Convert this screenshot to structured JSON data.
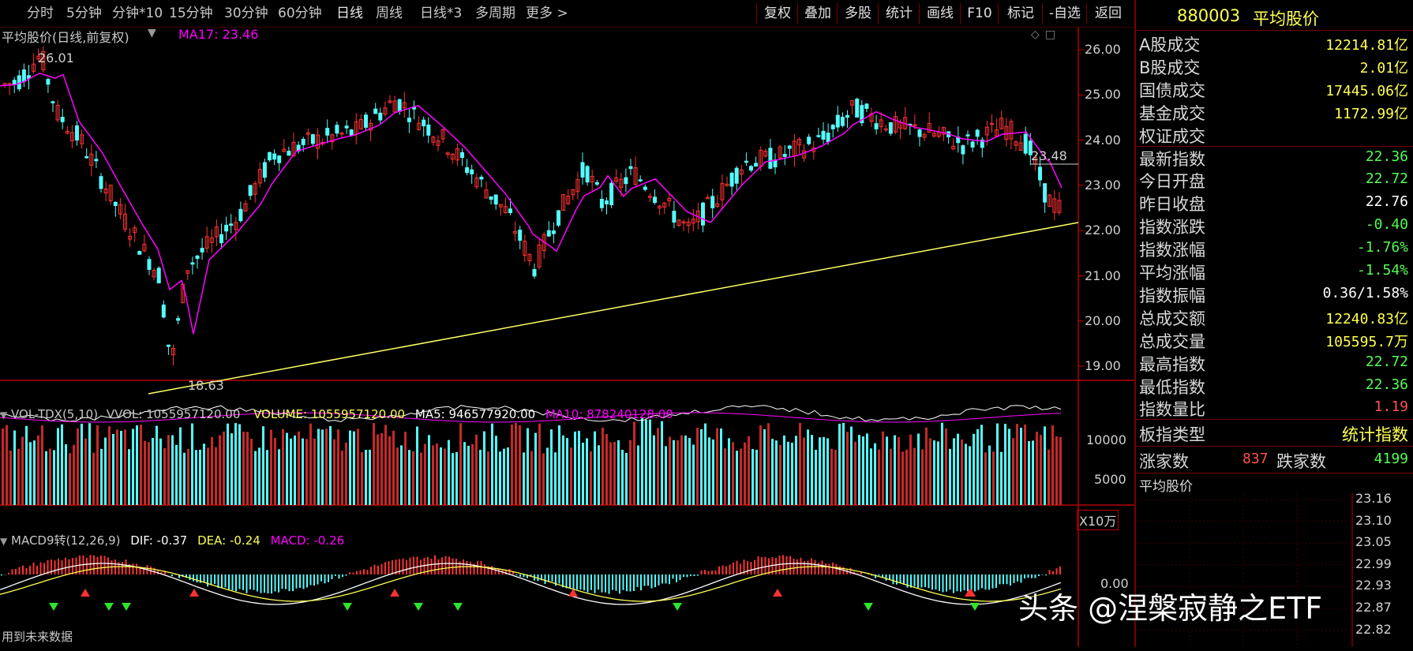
{
  "toolbar": {
    "periods": [
      "分时",
      "5分钟",
      "分钟*10",
      "15分钟",
      "30分钟",
      "60分钟",
      "日线",
      "周线",
      "日线*3",
      "多周期",
      "更多 >"
    ],
    "active_period": "日线",
    "actions": [
      "复权",
      "叠加",
      "多股",
      "统计",
      "画线",
      "F10",
      "标记",
      "-自选",
      "返回"
    ]
  },
  "main_chart": {
    "title": "平均股价(日线,前复权)",
    "ma_label": "MA17: 23.46",
    "price_axis": [
      "26.00",
      "25.00",
      "24.00",
      "23.00",
      "22.00",
      "21.00",
      "20.00",
      "19.00"
    ],
    "high_marker": "26.01",
    "low_marker": "18.63",
    "last_marker": "23.48",
    "colors": {
      "up": "#ff3232",
      "down": "#54fcfc",
      "ma17": "#ff00ff",
      "trend": "#ffff66",
      "axis": "#b40000"
    }
  },
  "volume_panel": {
    "name": "VOL-TDX(5,10)",
    "vvol": "VVOL: 1055957120.00",
    "volume": "VOLUME: 1055957120.00",
    "ma5": "MA5: 946577920.00",
    "ma10": "MA10: 878240128.00",
    "axis": [
      "10000",
      "5000"
    ],
    "unit": "X10万"
  },
  "macd_panel": {
    "name": "MACD9转(12,26,9)",
    "dif": "DIF: -0.37",
    "dea": "DEA: -0.24",
    "macd": "MACD: -0.26",
    "axis_zero": "0.00",
    "footer": "用到未来数据"
  },
  "sidebar": {
    "code": "880003",
    "name": "平均股价",
    "rows": [
      {
        "k": "A股成交",
        "v": "12214.81亿",
        "c": "#ffff54"
      },
      {
        "k": "B股成交",
        "v": "2.01亿",
        "c": "#ffff54"
      },
      {
        "k": "国债成交",
        "v": "17445.06亿",
        "c": "#ffff54"
      },
      {
        "k": "基金成交",
        "v": "1172.99亿",
        "c": "#ffff54"
      },
      {
        "k": "权证成交",
        "v": "",
        "c": "#ffff54"
      },
      {
        "k": "最新指数",
        "v": "22.36",
        "c": "#54fc54"
      },
      {
        "k": "今日开盘",
        "v": "22.72",
        "c": "#54fc54"
      },
      {
        "k": "昨日收盘",
        "v": "22.76",
        "c": "#ffffff"
      },
      {
        "k": "指数涨跌",
        "v": "-0.40",
        "c": "#54fc54"
      },
      {
        "k": "指数涨幅",
        "v": "-1.76%",
        "c": "#54fc54"
      },
      {
        "k": "平均涨幅",
        "v": "-1.54%",
        "c": "#54fc54"
      },
      {
        "k": "指数振幅",
        "v": "0.36/1.58%",
        "c": "#ffffff"
      },
      {
        "k": "总成交额",
        "v": "12240.83亿",
        "c": "#ffff54"
      },
      {
        "k": "总成交量",
        "v": "105595.7万",
        "c": "#ffff54"
      },
      {
        "k": "最高指数",
        "v": "22.72",
        "c": "#54fc54"
      },
      {
        "k": "最低指数",
        "v": "22.36",
        "c": "#54fc54"
      },
      {
        "k": "指数量比",
        "v": "1.19",
        "c": "#ff5050"
      }
    ],
    "type_label": "板指类型",
    "type_value": "统计指数",
    "up_label": "涨家数",
    "up_value": "837",
    "down_label": "跌家数",
    "down_value": "4199",
    "mini_title": "平均股价",
    "mini_axis": [
      "23.16",
      "23.10",
      "23.05",
      "22.99",
      "22.93",
      "22.87",
      "22.82"
    ]
  },
  "watermark": "头条 @涅槃寂静之ETF"
}
